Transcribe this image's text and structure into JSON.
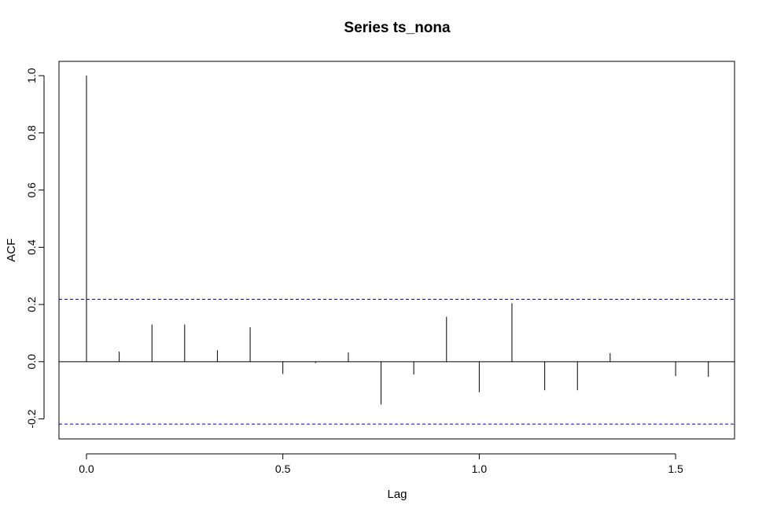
{
  "chart_data": {
    "type": "bar",
    "title": "Series  ts_nona",
    "xlabel": "Lag",
    "ylabel": "ACF",
    "xlim": [
      -0.07,
      1.65
    ],
    "ylim": [
      -0.27,
      1.05
    ],
    "x_ticks": [
      0.0,
      0.5,
      1.0,
      1.5
    ],
    "x_tick_labels": [
      "0.0",
      "0.5",
      "1.0",
      "1.5"
    ],
    "y_ticks": [
      -0.2,
      0.0,
      0.2,
      0.4,
      0.6,
      0.8,
      1.0
    ],
    "y_tick_labels": [
      "-0.2",
      "0.0",
      "0.2",
      "0.4",
      "0.6",
      "0.8",
      "1.0"
    ],
    "lags": [
      0.0,
      0.0833,
      0.1667,
      0.25,
      0.3333,
      0.4167,
      0.5,
      0.5833,
      0.6667,
      0.75,
      0.8333,
      0.9167,
      1.0,
      1.0833,
      1.1667,
      1.25,
      1.3333,
      1.4167,
      1.5,
      1.5833
    ],
    "acf": [
      1.0,
      0.035,
      0.13,
      0.13,
      0.04,
      0.12,
      -0.043,
      -0.005,
      0.032,
      -0.15,
      -0.045,
      0.157,
      -0.107,
      0.205,
      -0.1,
      -0.1,
      0.03,
      0.0,
      -0.05,
      -0.053
    ],
    "confidence_bound": 0.218,
    "zero_line": true,
    "grid": false,
    "colors": {
      "stems": "#000000",
      "confidence": "#0000cc"
    }
  }
}
